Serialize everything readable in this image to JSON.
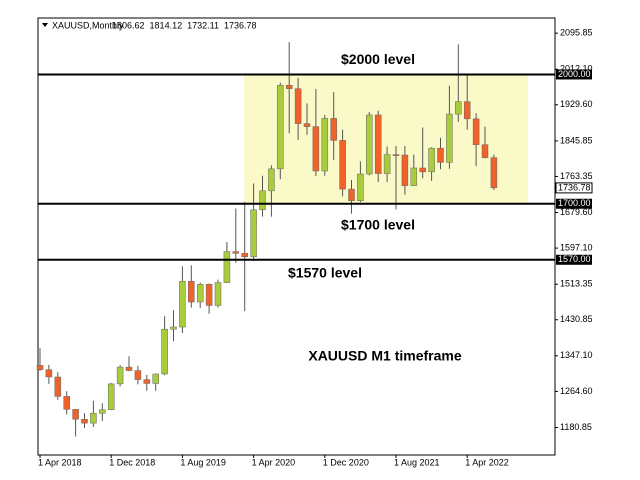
{
  "chart_data": {
    "type": "candlestick",
    "symbol": "XAUUSD,Monthly",
    "ohlc_header": [
      1806.62,
      1814.12,
      1732.11,
      1736.78
    ],
    "last_price": 1736.78,
    "note": "XAUUSD M1 timeframe",
    "up_color": "#a8cc3c",
    "down_color": "#f0622a",
    "zone_color": "#fafac8",
    "categories": [
      "1 Apr 2018",
      null,
      null,
      null,
      null,
      null,
      null,
      null,
      "1 Dec 2018",
      null,
      null,
      null,
      null,
      null,
      null,
      null,
      "1 Aug 2019",
      null,
      null,
      null,
      null,
      null,
      null,
      null,
      "1 Apr 2020",
      null,
      null,
      null,
      null,
      null,
      null,
      null,
      "1 Dec 2020",
      null,
      null,
      null,
      null,
      null,
      null,
      null,
      "1 Aug 2021",
      null,
      null,
      null,
      null,
      null,
      null,
      null,
      "1 Apr 2022",
      null,
      null,
      null
    ],
    "open": [
      1325,
      1315,
      1298,
      1253,
      1223,
      1200,
      1191,
      1214,
      1222,
      1282,
      1321,
      1313,
      1292,
      1283,
      1305,
      1409,
      1414,
      1520,
      1472,
      1513,
      1464,
      1517,
      1589,
      1585,
      1577,
      1686,
      1730,
      1781,
      1975,
      1967,
      1886,
      1879,
      1776,
      1898,
      1847,
      1734,
      1707,
      1769,
      1906,
      1770,
      1814,
      1813,
      1742,
      1783,
      1774,
      1829,
      1796,
      1908,
      1937,
      1897,
      1837,
      1807
    ],
    "high": [
      1365,
      1326,
      1309,
      1265,
      1222,
      1214,
      1243,
      1237,
      1284,
      1326,
      1346,
      1324,
      1303,
      1306,
      1439,
      1453,
      1555,
      1557,
      1517,
      1515,
      1524,
      1611,
      1689,
      1704,
      1747,
      1765,
      1789,
      1981,
      2075,
      1992,
      1933,
      1966,
      1906,
      1959,
      1872,
      1755,
      1798,
      1913,
      1916,
      1833,
      1834,
      1834,
      1814,
      1877,
      1831,
      1853,
      1974,
      2070,
      1998,
      1910,
      1879,
      1814
    ],
    "low": [
      1312,
      1282,
      1245,
      1211,
      1160,
      1180,
      1182,
      1196,
      1221,
      1276,
      1311,
      1281,
      1266,
      1266,
      1302,
      1381,
      1400,
      1459,
      1458,
      1445,
      1459,
      1517,
      1563,
      1451,
      1567,
      1670,
      1670,
      1757,
      1863,
      1848,
      1860,
      1764,
      1765,
      1802,
      1717,
      1677,
      1704,
      1766,
      1750,
      1750,
      1687,
      1721,
      1746,
      1759,
      1753,
      1780,
      1781,
      1890,
      1872,
      1787,
      1805,
      1732
    ],
    "close": [
      1315,
      1298,
      1253,
      1223,
      1200,
      1191,
      1214,
      1222,
      1282,
      1321,
      1313,
      1292,
      1283,
      1305,
      1409,
      1414,
      1520,
      1472,
      1513,
      1464,
      1517,
      1589,
      1585,
      1577,
      1686,
      1730,
      1781,
      1975,
      1967,
      1886,
      1879,
      1776,
      1898,
      1847,
      1734,
      1707,
      1769,
      1906,
      1770,
      1814,
      1813,
      1742,
      1783,
      1774,
      1829,
      1796,
      1908,
      1937,
      1897,
      1837,
      1807,
      1737
    ],
    "ylim": [
      1117,
      2131
    ],
    "yticks": [
      2095.85,
      {
        "value": 2012.1,
        "label": "2012.10"
      },
      {
        "value": 1929.6,
        "label": "1929.60"
      },
      1845.85,
      1763.35,
      {
        "value": 1679.6,
        "label": "1679.60"
      },
      {
        "value": 1597.1,
        "label": "1597.10"
      },
      1513.35,
      1430.85,
      {
        "value": 1347.1,
        "label": "1347.10"
      },
      {
        "value": 1264.6,
        "label": "1264.60"
      },
      1180.85
    ],
    "levels": [
      {
        "value": 2000,
        "tag": "2000.00",
        "annotation": "$2000 level"
      },
      {
        "value": 1700,
        "tag": "1700.00",
        "annotation": "$1700 level"
      },
      {
        "value": 1570,
        "tag": "1570.00",
        "annotation": "$1570 level"
      }
    ]
  }
}
